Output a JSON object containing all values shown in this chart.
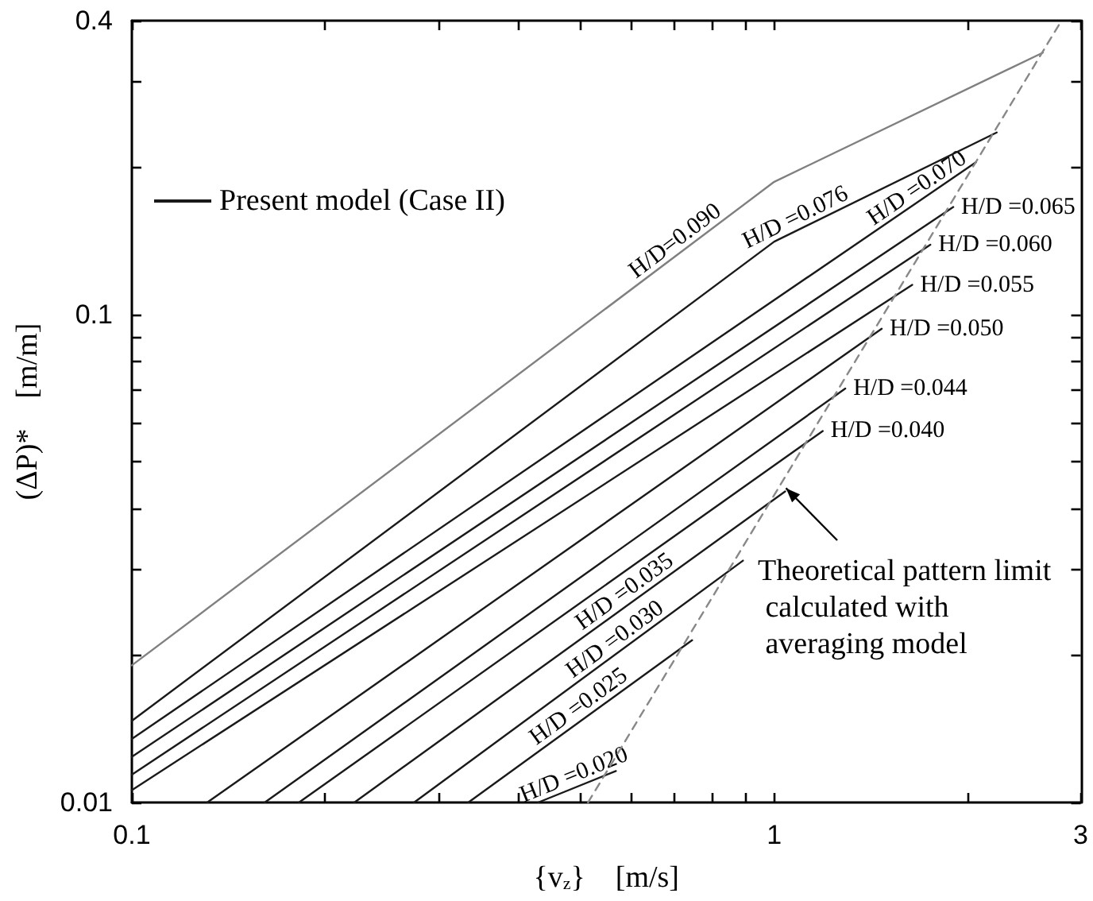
{
  "chart_data": {
    "type": "line",
    "xlabel": "{v$_{z}$}    [m/s]",
    "ylabel": "(ΔP)*    [m/m]",
    "log": "xy",
    "grid": false,
    "marker": "none",
    "legend": "top left",
    "xlim": [
      0.1,
      3
    ],
    "ylim": [
      0.01,
      0.4
    ],
    "xticks": [
      0.1,
      {
        "value": 0.2,
        "label": null
      },
      {
        "value": 0.3,
        "label": null
      },
      {
        "value": 0.4,
        "label": null
      },
      {
        "value": 0.5,
        "label": null
      },
      {
        "value": 0.6,
        "label": null
      },
      {
        "value": 0.7,
        "label": null
      },
      {
        "value": 0.8,
        "label": null
      },
      {
        "value": 0.9,
        "label": null
      },
      1,
      {
        "value": 2,
        "label": null
      },
      3
    ],
    "yticks": [
      0.01,
      {
        "value": 0.02,
        "label": null
      },
      {
        "value": 0.03,
        "label": null
      },
      {
        "value": 0.04,
        "label": null
      },
      {
        "value": 0.05,
        "label": null
      },
      {
        "value": 0.06,
        "label": null
      },
      {
        "value": 0.07,
        "label": null
      },
      {
        "value": 0.08,
        "label": null
      },
      {
        "value": 0.09,
        "label": null
      },
      0.1,
      {
        "value": 0.2,
        "label": null
      },
      {
        "value": 0.3,
        "label": null
      },
      0.4
    ],
    "series": [
      {
        "color": "#808080",
        "x": [
          0.1,
          1,
          2.62
        ],
        "values": [
          0.0191,
          0.187,
          0.344
        ]
      },
      {
        "name": "Present model (Case II)",
        "color": "#1a1a1a",
        "x": [
          0.1,
          1,
          2.22
        ],
        "values": [
          0.0147,
          0.141,
          0.236
        ]
      },
      {
        "color": "#1a1a1a",
        "x": [
          0.1,
          2.06
        ],
        "values": [
          0.0135,
          0.205
        ]
      },
      {
        "color": "#1a1a1a",
        "x": [
          0.1,
          1.9
        ],
        "values": [
          0.0124,
          0.166
        ]
      },
      {
        "color": "#1a1a1a",
        "x": [
          0.1,
          1.75
        ],
        "values": [
          0.0114,
          0.139
        ]
      },
      {
        "color": "#1a1a1a",
        "x": [
          0.1,
          1.64
        ],
        "values": [
          0.0106,
          0.115
        ]
      },
      {
        "color": "#1a1a1a",
        "x": [
          0.131,
          1.47
        ],
        "values": [
          0.01,
          0.0935
        ]
      },
      {
        "color": "#1a1a1a",
        "x": [
          0.161,
          1.29
        ],
        "values": [
          0.01,
          0.0705
        ]
      },
      {
        "color": "#1a1a1a",
        "x": [
          0.182,
          1.19
        ],
        "values": [
          0.01,
          0.0577
        ]
      },
      {
        "color": "#1a1a1a",
        "x": [
          0.222,
          1.04
        ],
        "values": [
          0.01,
          0.0434
        ]
      },
      {
        "color": "#1a1a1a",
        "x": [
          0.275,
          0.894
        ],
        "values": [
          0.01,
          0.0313
        ]
      },
      {
        "color": "#1a1a1a",
        "x": [
          0.334,
          0.745
        ],
        "values": [
          0.01,
          0.0215
        ]
      },
      {
        "color": "#1a1a1a",
        "x": [
          0.429,
          0.567
        ],
        "values": [
          0.01,
          0.0116
        ]
      },
      {
        "color": "#888888",
        "line_style": "dashed",
        "x": [
          0.513,
          2.8
        ],
        "values": [
          0.01,
          0.4
        ]
      }
    ],
    "annotations": [
      {
        "text": "H/D=0.090",
        "x": 0.72,
        "y": 0.135
      },
      {
        "text": "H/D =0.076",
        "x": 1.1,
        "y": 0.15
      },
      {
        "text": "H/D =0.070",
        "x": 1.71,
        "y": 0.173
      },
      {
        "text": "H/D =0.065",
        "x": 1.9,
        "y": 0.166
      },
      {
        "text": "H/D =0.060",
        "x": 1.75,
        "y": 0.139
      },
      {
        "text": "H/D =0.055",
        "x": 1.64,
        "y": 0.115
      },
      {
        "text": "H/D =0.050",
        "x": 1.47,
        "y": 0.0935
      },
      {
        "text": "H/D =0.044",
        "x": 1.29,
        "y": 0.0705
      },
      {
        "text": "H/D =0.040",
        "x": 1.19,
        "y": 0.0577
      },
      {
        "text": "H/D =0.035",
        "x": 0.6,
        "y": 0.0258
      },
      {
        "text": "H/D =0.030",
        "x": 0.58,
        "y": 0.0206
      },
      {
        "text": "H/D =0.025",
        "x": 0.509,
        "y": 0.015
      },
      {
        "text": "H/D =0.020",
        "x": 0.496,
        "y": 0.0108
      },
      "Theoretical pattern limit\n calculated with\n averaging model"
    ]
  }
}
